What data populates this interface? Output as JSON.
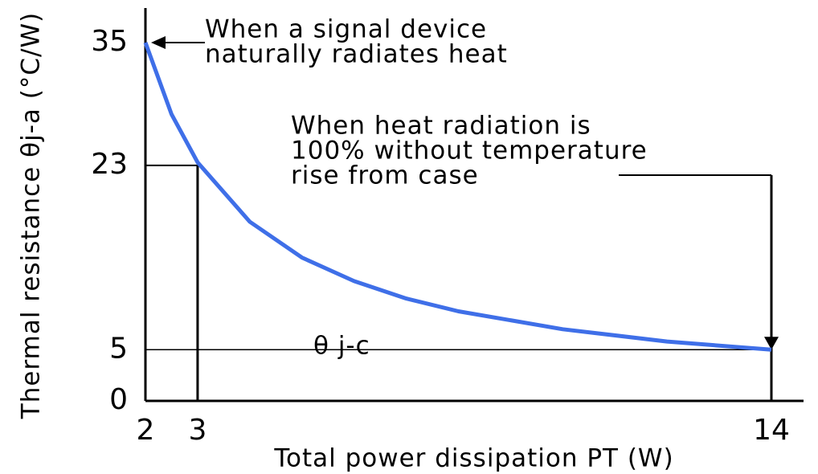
{
  "chart_data": {
    "type": "line",
    "x_label": "Total power dissipation PT (W)",
    "y_label": "Thermal resistance θj-a (°C/W)",
    "x": [
      2,
      2.5,
      3,
      4,
      5,
      6,
      7,
      8,
      10,
      12,
      14
    ],
    "series": [
      {
        "name": "θj-a",
        "color": "#3f6fe8",
        "values": [
          35,
          28,
          23.3,
          17.5,
          14,
          11.7,
          10,
          8.75,
          7,
          5.8,
          5
        ]
      }
    ],
    "xlim": [
      2,
      14
    ],
    "xticks": [
      2,
      3,
      14
    ],
    "ylim": [
      0,
      35
    ],
    "yticks": [
      0,
      5,
      23,
      35
    ],
    "annotations": [
      {
        "lines": [
          "When a signal device",
          "naturally radiates heat"
        ]
      },
      {
        "lines": [
          "When heat radiation is",
          "100% without temperature",
          "rise from case"
        ]
      },
      {
        "lines": [
          "θ j-c"
        ]
      }
    ]
  }
}
